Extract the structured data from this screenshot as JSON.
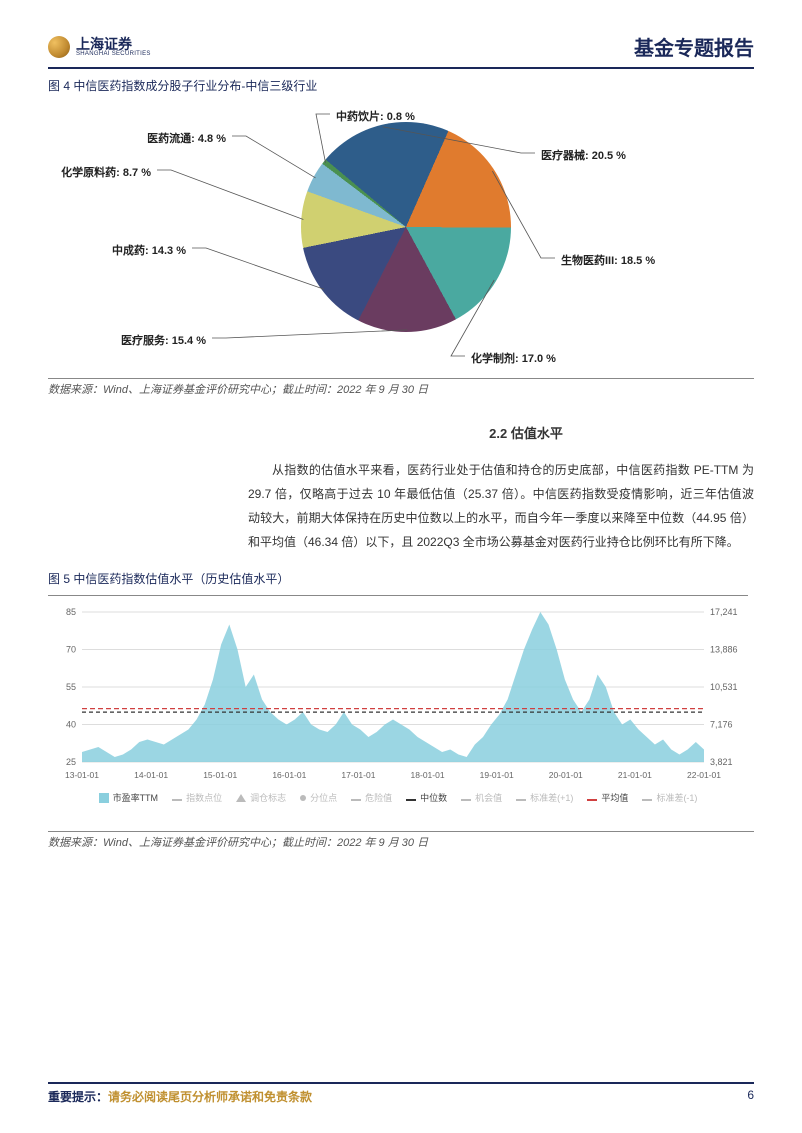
{
  "header": {
    "brand_cn": "上海证券",
    "brand_en": "SHANGHAI SECURITIES",
    "report_title": "基金专题报告"
  },
  "fig4": {
    "title": "图 4  中信医药指数成分股子行业分布-中信三级行业",
    "type": "pie",
    "slices": [
      {
        "label": "医疗器械: 20.5 %",
        "value": 20.5,
        "color": "#2e5d8a"
      },
      {
        "label": "生物医药III: 18.5 %",
        "value": 18.5,
        "color": "#e07b2e"
      },
      {
        "label": "化学制剂: 17.0 %",
        "value": 17.0,
        "color": "#4aa9a0"
      },
      {
        "label": "医疗服务: 15.4 %",
        "value": 15.4,
        "color": "#6a3c60"
      },
      {
        "label": "中成药: 14.3 %",
        "value": 14.3,
        "color": "#3a4a80"
      },
      {
        "label": "化学原料药: 8.7 %",
        "value": 8.7,
        "color": "#d0d070"
      },
      {
        "label": "医药流通: 4.8 %",
        "value": 4.8,
        "color": "#7fb9d0"
      },
      {
        "label": "中药饮片: 0.8 %",
        "value": 0.8,
        "color": "#4a9050"
      }
    ],
    "source": "数据来源：Wind、上海证券基金评价研究中心；截止时间：2022 年 9 月 30 日"
  },
  "section": {
    "title": "2.2 估值水平",
    "body": "从指数的估值水平来看，医药行业处于估值和持仓的历史底部，中信医药指数 PE-TTM 为 29.7 倍，仅略高于过去 10 年最低估值（25.37 倍）。中信医药指数受疫情影响，近三年估值波动较大，前期大体保持在历史中位数以上的水平，而自今年一季度以来降至中位数（44.95 倍）和平均值（46.34 倍）以下，且 2022Q3 全市场公募基金对医药行业持仓比例环比有所下降。"
  },
  "fig5": {
    "title": "图 5  中信医药指数估值水平（历史估值水平）",
    "type": "area",
    "y_left_ticks": [
      25,
      40,
      55,
      70,
      85
    ],
    "y_right_ticks": [
      3821,
      7176,
      10531,
      13886,
      17241
    ],
    "x_ticks": [
      "13-01-01",
      "14-01-01",
      "15-01-01",
      "16-01-01",
      "17-01-01",
      "18-01-01",
      "19-01-01",
      "20-01-01",
      "21-01-01",
      "22-01-01"
    ],
    "area_color": "#8acfde",
    "grid_color": "#dddddd",
    "median_line": {
      "label": "中位数",
      "value": 44.95,
      "color": "#333333",
      "dash": "4,3"
    },
    "mean_line": {
      "label": "平均值",
      "value": 46.34,
      "color": "#d04040",
      "dash": "5,3"
    },
    "legend": [
      {
        "label": "市盈率TTM",
        "swatch": "#8acfde",
        "shape": "rect",
        "active": true
      },
      {
        "label": "指数点位",
        "swatch": "#bbbbbb",
        "shape": "line",
        "active": false
      },
      {
        "label": "调仓标志",
        "swatch": "#bbbbbb",
        "shape": "tri",
        "active": false
      },
      {
        "label": "分位点",
        "swatch": "#bbbbbb",
        "shape": "dot",
        "active": false
      },
      {
        "label": "危险值",
        "swatch": "#bbbbbb",
        "shape": "line",
        "active": false
      },
      {
        "label": "中位数",
        "swatch": "#333333",
        "shape": "dash",
        "active": true
      },
      {
        "label": "机会值",
        "swatch": "#bbbbbb",
        "shape": "line",
        "active": false
      },
      {
        "label": "标准差(+1)",
        "swatch": "#bbbbbb",
        "shape": "line",
        "active": false
      },
      {
        "label": "平均值",
        "swatch": "#d04040",
        "shape": "dash",
        "active": true
      },
      {
        "label": "标准差(-1)",
        "swatch": "#bbbbbb",
        "shape": "line",
        "active": false
      }
    ],
    "series_pe": [
      29,
      30,
      31,
      29,
      27,
      28,
      30,
      33,
      34,
      33,
      32,
      34,
      36,
      38,
      42,
      48,
      58,
      72,
      80,
      70,
      55,
      60,
      50,
      45,
      42,
      40,
      42,
      45,
      40,
      38,
      37,
      40,
      45,
      40,
      38,
      35,
      37,
      40,
      42,
      40,
      38,
      35,
      33,
      31,
      29,
      30,
      28,
      27,
      32,
      35,
      40,
      44,
      50,
      60,
      70,
      78,
      85,
      80,
      70,
      58,
      50,
      45,
      50,
      60,
      55,
      45,
      40,
      42,
      38,
      35,
      32,
      34,
      30,
      28,
      30,
      33,
      30
    ],
    "source": "数据来源：Wind、上海证券基金评价研究中心；截止时间：2022 年 9 月 30 日"
  },
  "footer": {
    "bold": "重要提示：",
    "rest": "请务必阅读尾页分析师承诺和免责条款",
    "page": "6"
  }
}
